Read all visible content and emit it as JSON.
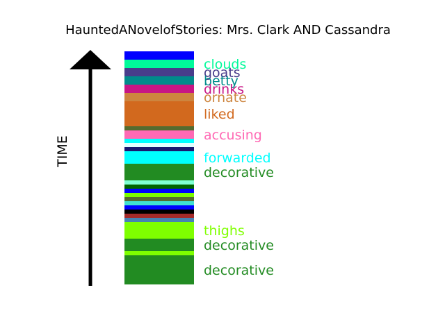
{
  "chart_data": {
    "type": "bar",
    "title": "HauntedANovelofStories: Mrs. Clark AND Cassandra",
    "ylabel": "TIME",
    "ylim": [
      0,
      28
    ],
    "segments": [
      {
        "start": 27.0,
        "end": 28.0,
        "color": "#0000ff",
        "label": ""
      },
      {
        "start": 26.0,
        "end": 27.0,
        "color": "#00fa9a",
        "label": "clouds"
      },
      {
        "start": 25.0,
        "end": 26.0,
        "color": "#483d8b",
        "label": "goats"
      },
      {
        "start": 24.0,
        "end": 25.0,
        "color": "#008b8b",
        "label": "betty"
      },
      {
        "start": 23.0,
        "end": 24.0,
        "color": "#c71585",
        "label": "drinks"
      },
      {
        "start": 22.0,
        "end": 23.0,
        "color": "#cd853f",
        "label": "ornate"
      },
      {
        "start": 19.0,
        "end": 22.0,
        "color": "#d2691e",
        "label": "liked"
      },
      {
        "start": 18.5,
        "end": 19.0,
        "color": "#556b2f",
        "label": ""
      },
      {
        "start": 17.5,
        "end": 18.5,
        "color": "#ff69b4",
        "label": "accusing"
      },
      {
        "start": 17.0,
        "end": 17.5,
        "color": "#00ffff",
        "label": ""
      },
      {
        "start": 16.5,
        "end": 17.0,
        "color": "#e0ffff",
        "label": ""
      },
      {
        "start": 16.0,
        "end": 16.5,
        "color": "#191970",
        "label": ""
      },
      {
        "start": 14.5,
        "end": 16.0,
        "color": "#00ffff",
        "label": "forwarded"
      },
      {
        "start": 12.5,
        "end": 14.5,
        "color": "#228b22",
        "label": "decorative"
      },
      {
        "start": 12.0,
        "end": 12.5,
        "color": "#7fffd4",
        "label": ""
      },
      {
        "start": 11.5,
        "end": 12.0,
        "color": "#006400",
        "label": ""
      },
      {
        "start": 11.0,
        "end": 11.5,
        "color": "#0000ff",
        "label": ""
      },
      {
        "start": 10.5,
        "end": 11.0,
        "color": "#7cfc00",
        "label": ""
      },
      {
        "start": 10.0,
        "end": 10.5,
        "color": "#556b2f",
        "label": ""
      },
      {
        "start": 9.5,
        "end": 10.0,
        "color": "#40e0d0",
        "label": ""
      },
      {
        "start": 9.0,
        "end": 9.5,
        "color": "#0000ff",
        "label": ""
      },
      {
        "start": 8.5,
        "end": 9.0,
        "color": "#000000",
        "label": ""
      },
      {
        "start": 8.0,
        "end": 8.5,
        "color": "#a52a2a",
        "label": ""
      },
      {
        "start": 7.5,
        "end": 8.0,
        "color": "#4682b4",
        "label": ""
      },
      {
        "start": 5.5,
        "end": 7.5,
        "color": "#7fff00",
        "label": "thighs"
      },
      {
        "start": 4.0,
        "end": 5.5,
        "color": "#228b22",
        "label": "decorative"
      },
      {
        "start": 3.5,
        "end": 4.0,
        "color": "#7fff00",
        "label": ""
      },
      {
        "start": 0.0,
        "end": 3.5,
        "color": "#228b22",
        "label": "decorative"
      }
    ]
  }
}
